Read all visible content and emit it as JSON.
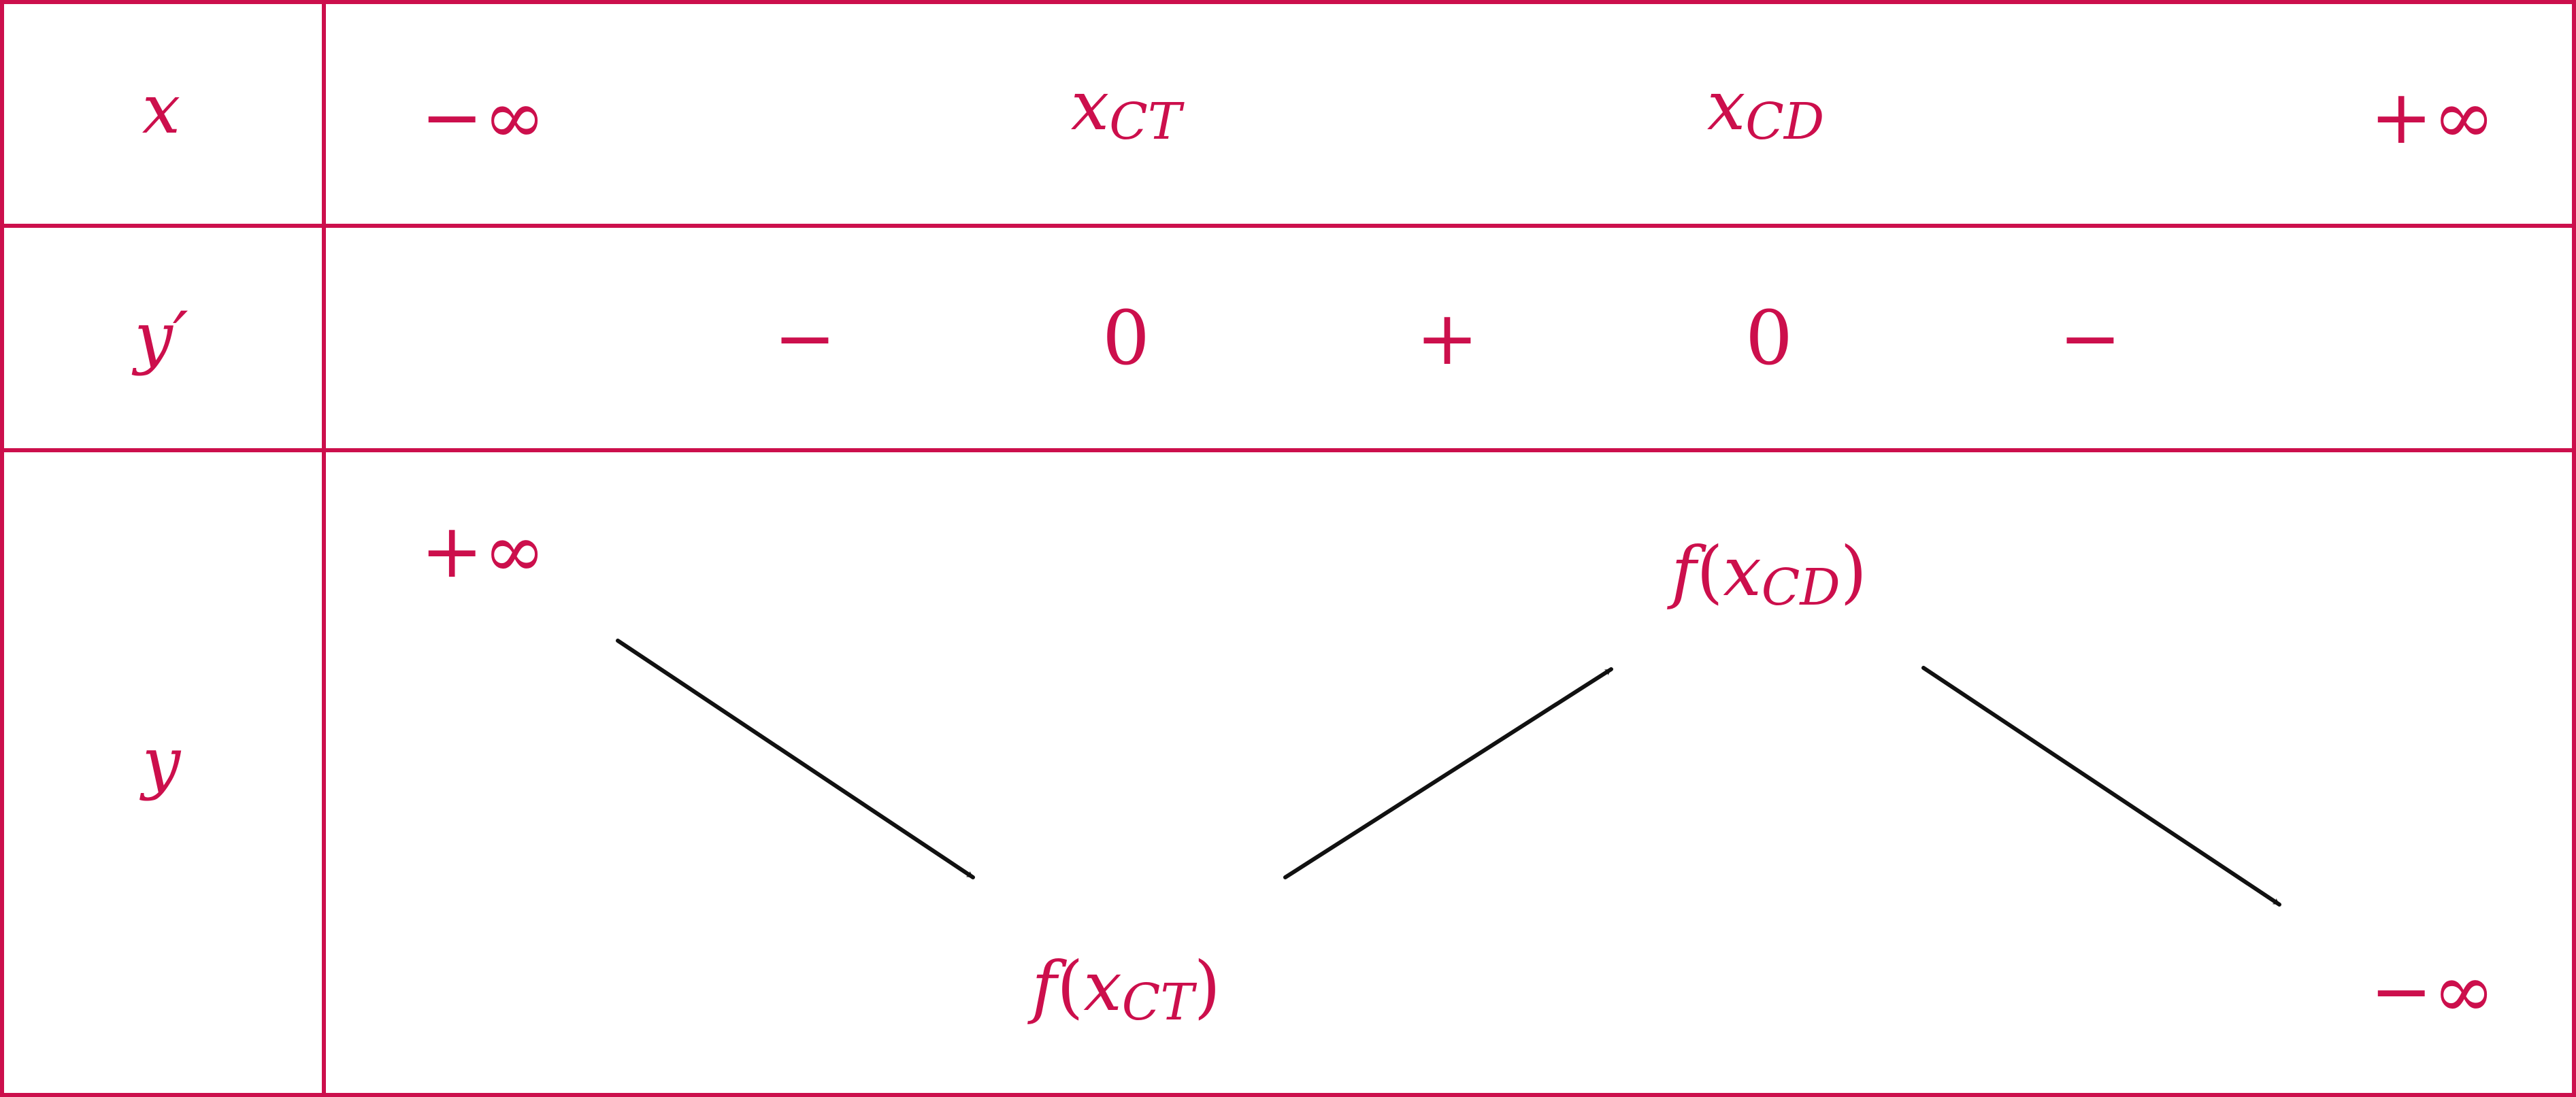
{
  "colors": {
    "table": "#cc0f4c",
    "text": "#cc0f4c",
    "arrow": "#111111"
  },
  "labels": {
    "x": "x",
    "y_prime": "y′",
    "y": "y"
  },
  "x_row": {
    "neg_inf": "−∞",
    "x_ct": {
      "base": "x",
      "sub": "CT"
    },
    "x_cd": {
      "base": "x",
      "sub": "CD"
    },
    "pos_inf": "+∞"
  },
  "y_prime_row": [
    "−",
    "0",
    "+",
    "0",
    "−"
  ],
  "y_row": {
    "start": "+∞",
    "min": {
      "f": "f",
      "open": "(",
      "base": "x",
      "sub": "CT",
      "close": ")"
    },
    "max": {
      "f": "f",
      "open": "(",
      "base": "x",
      "sub": "CD",
      "close": ")"
    },
    "end": "−∞"
  },
  "arrows": [
    "decrease",
    "increase",
    "decrease"
  ]
}
